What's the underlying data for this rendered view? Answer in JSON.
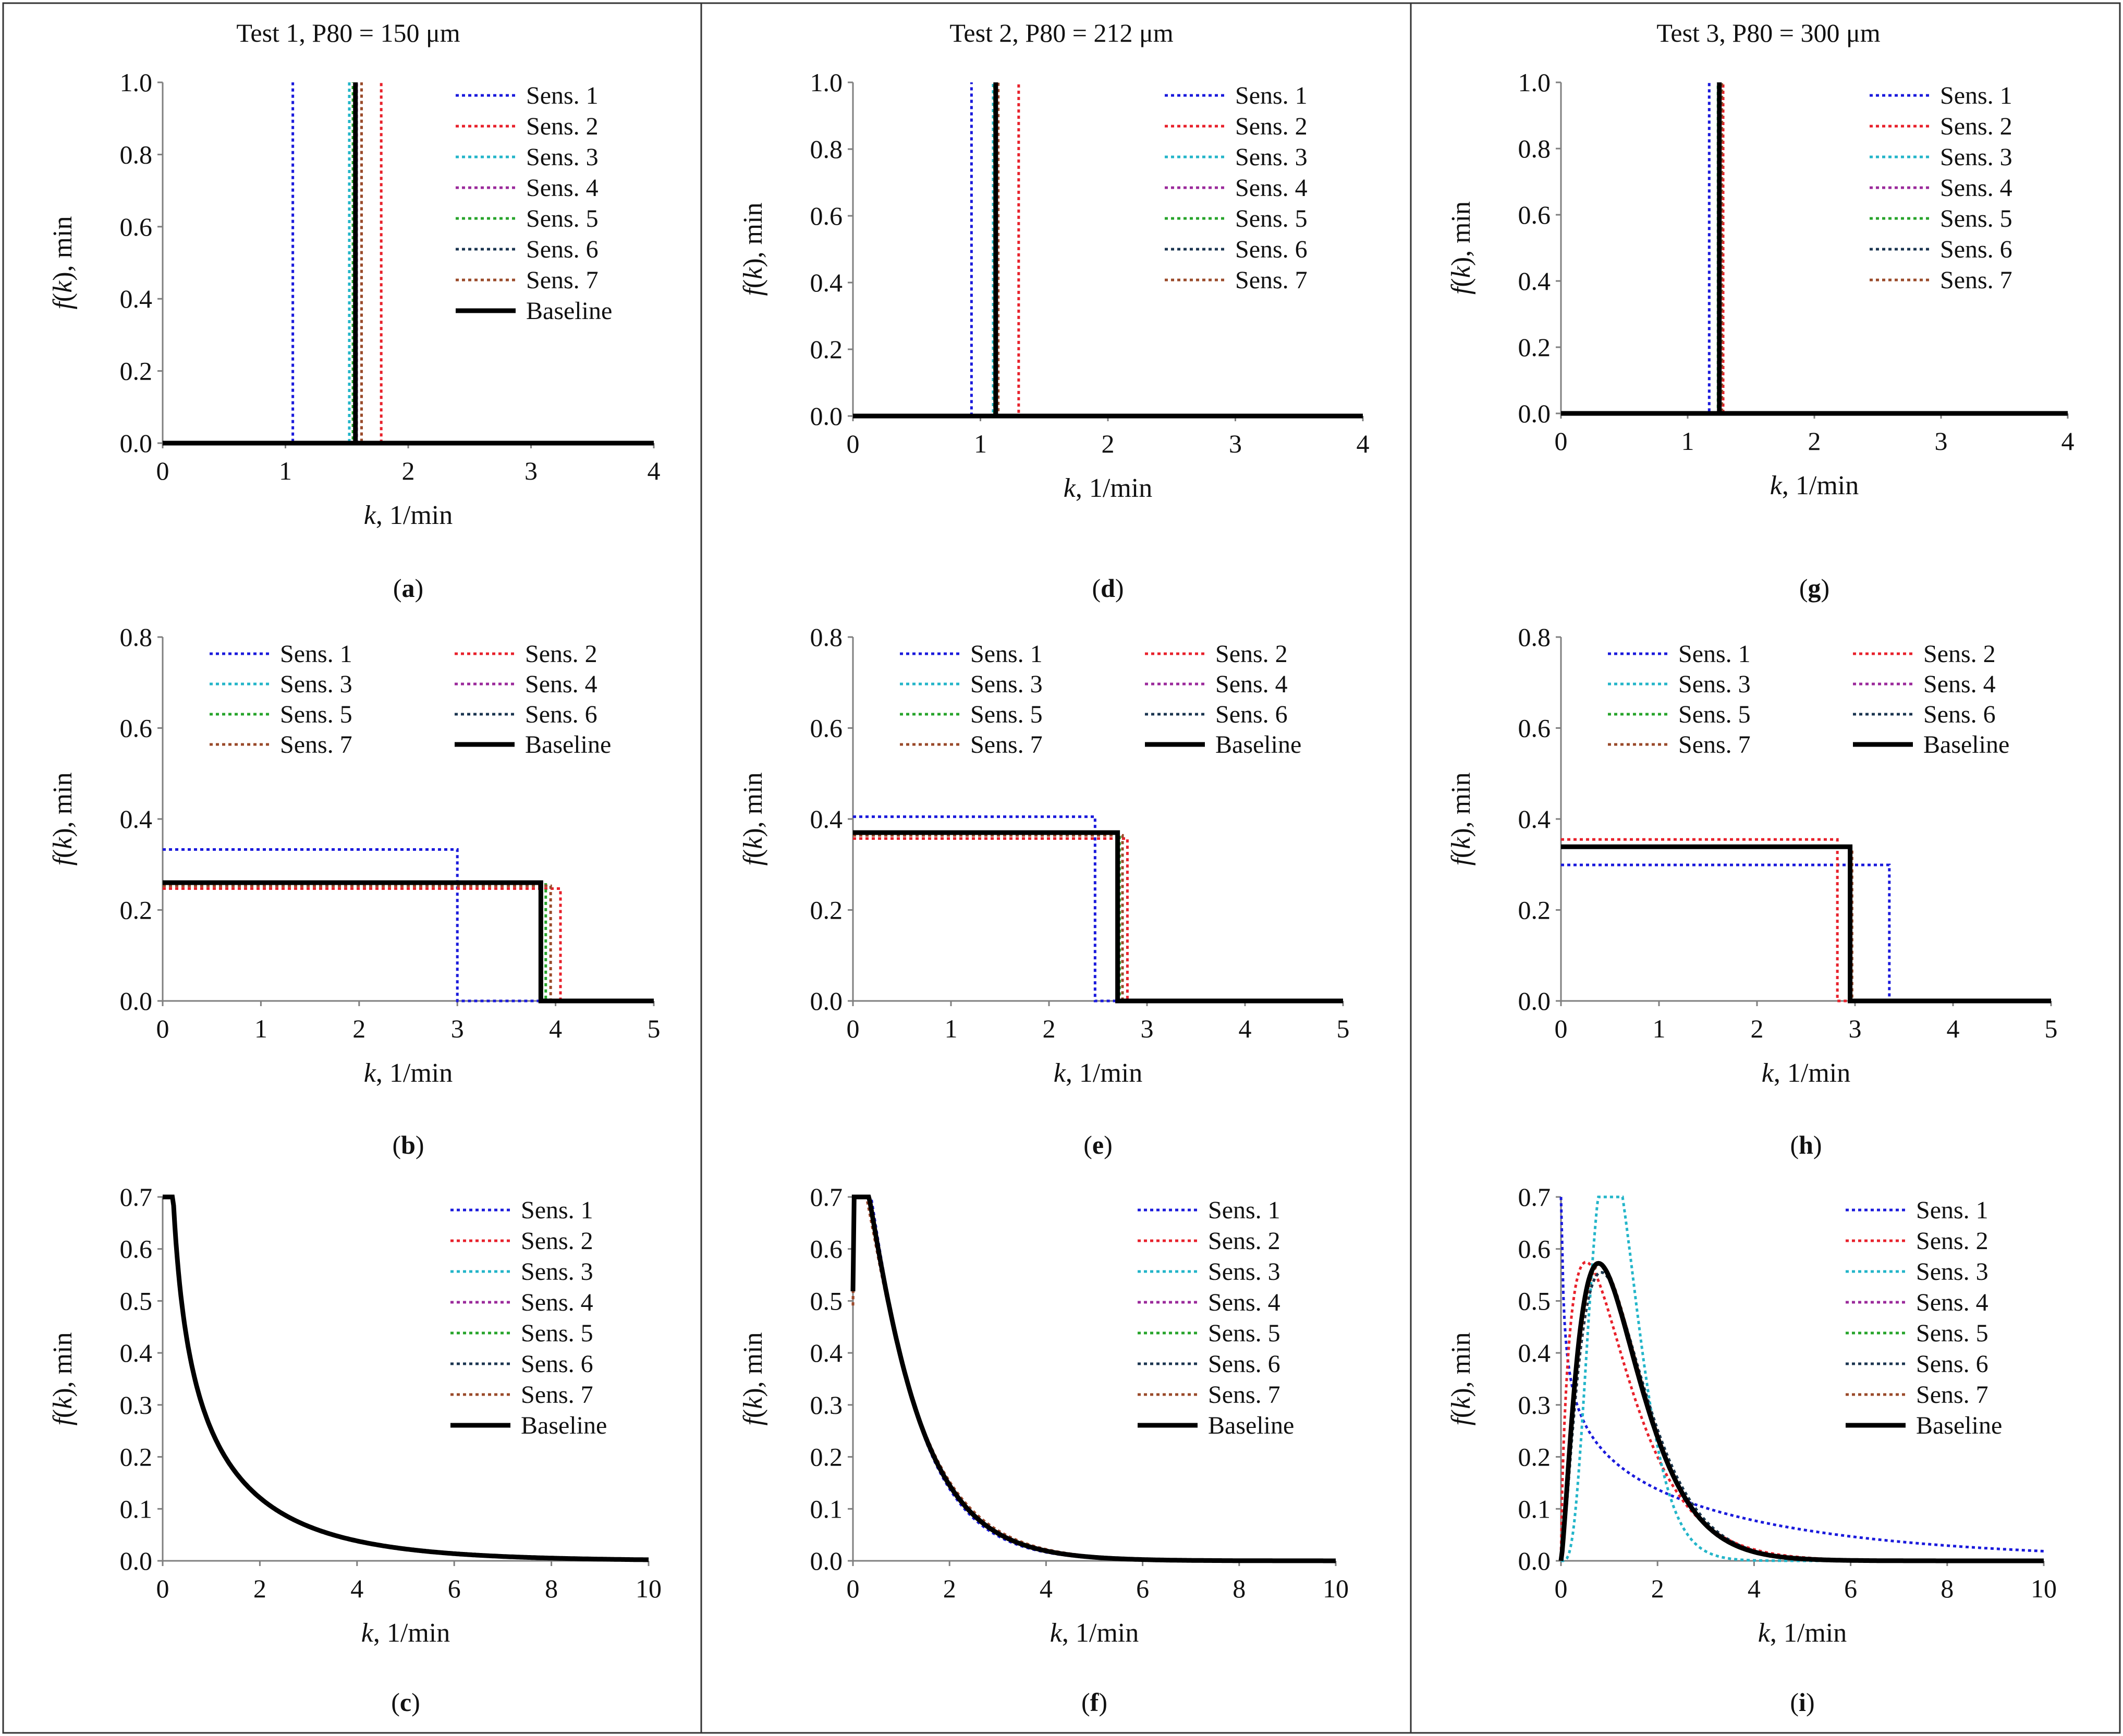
{
  "figure": {
    "columns": [
      "Test 1, P80 = 150 μm",
      "Test 2, P80 = 212 μm",
      "Test 3, P80 = 300 μm"
    ]
  },
  "series_styles": [
    {
      "name": "Sens. 1",
      "color": "#1a1adc",
      "dash": true
    },
    {
      "name": "Sens. 2",
      "color": "#e8212b",
      "dash": true
    },
    {
      "name": "Sens. 3",
      "color": "#23b5c9",
      "dash": true
    },
    {
      "name": "Sens. 4",
      "color": "#9b2a9b",
      "dash": true
    },
    {
      "name": "Sens. 5",
      "color": "#27a42b",
      "dash": true
    },
    {
      "name": "Sens. 6",
      "color": "#1b3550",
      "dash": true
    },
    {
      "name": "Sens. 7",
      "color": "#9a4a2a",
      "dash": true
    },
    {
      "name": "Baseline",
      "color": "#000000",
      "dash": false
    }
  ],
  "chart_data": [
    {
      "id": "a",
      "label": "(a)",
      "type": "line",
      "kind": "delta",
      "xlabel_var": "k",
      "xlabel_unit": ", 1/min",
      "ylabel_func": "f",
      "ylabel_arg": "k",
      "ylabel_unit": ", min",
      "xlim": [
        0,
        4
      ],
      "ylim": [
        0,
        1
      ],
      "xticks": [
        0,
        1,
        2,
        3,
        4
      ],
      "yticks": [
        "0.0",
        "0.2",
        "0.4",
        "0.6",
        "0.8",
        "1.0"
      ],
      "legend": "top-right-1col",
      "legend_entries": [
        "Sens. 1",
        "Sens. 2",
        "Sens. 3",
        "Sens. 4",
        "Sens. 5",
        "Sens. 6",
        "Sens. 7",
        "Baseline"
      ],
      "series": [
        {
          "name": "Sens. 1",
          "k": 1.06
        },
        {
          "name": "Sens. 2",
          "k": 1.78
        },
        {
          "name": "Sens. 3",
          "k": 1.52
        },
        {
          "name": "Sens. 4",
          "k": 1.58
        },
        {
          "name": "Sens. 5",
          "k": 1.55
        },
        {
          "name": "Sens. 6",
          "k": 1.57
        },
        {
          "name": "Sens. 7",
          "k": 1.62
        },
        {
          "name": "Baseline",
          "k": 1.57
        }
      ]
    },
    {
      "id": "b",
      "label": "(b)",
      "type": "line",
      "kind": "uniform",
      "xlabel_var": "k",
      "xlabel_unit": ", 1/min",
      "ylabel_func": "f",
      "ylabel_arg": "k",
      "ylabel_unit": ", min",
      "xlim": [
        0,
        5
      ],
      "ylim": [
        0,
        0.8
      ],
      "xticks": [
        0,
        1,
        2,
        3,
        4,
        5
      ],
      "yticks": [
        "0.0",
        "0.2",
        "0.4",
        "0.6",
        "0.8"
      ],
      "legend": "top-2col",
      "legend_entries": [
        "Sens. 1",
        "Sens. 2",
        "Sens. 3",
        "Sens. 4",
        "Sens. 5",
        "Sens. 6",
        "Sens. 7",
        "Baseline"
      ],
      "series": [
        {
          "name": "Sens. 1",
          "kmax": 3.0,
          "f": 0.333
        },
        {
          "name": "Sens. 2",
          "kmax": 4.05,
          "f": 0.247
        },
        {
          "name": "Sens. 3",
          "kmax": 3.85,
          "f": 0.26
        },
        {
          "name": "Sens. 4",
          "kmax": 3.85,
          "f": 0.26
        },
        {
          "name": "Sens. 5",
          "kmax": 3.9,
          "f": 0.256
        },
        {
          "name": "Sens. 6",
          "kmax": 3.85,
          "f": 0.26
        },
        {
          "name": "Sens. 7",
          "kmax": 3.95,
          "f": 0.253
        },
        {
          "name": "Baseline",
          "kmax": 3.85,
          "f": 0.26
        }
      ]
    },
    {
      "id": "c",
      "label": "(c)",
      "type": "line",
      "kind": "gamma",
      "xlabel_var": "k",
      "xlabel_unit": ", 1/min",
      "ylabel_func": "f",
      "ylabel_arg": "k",
      "ylabel_unit": ", min",
      "xlim": [
        0,
        10
      ],
      "ylim": [
        0,
        0.7
      ],
      "xticks": [
        0,
        2,
        4,
        6,
        8,
        10
      ],
      "yticks": [
        "0.0",
        "0.1",
        "0.2",
        "0.3",
        "0.4",
        "0.5",
        "0.6",
        "0.7"
      ],
      "legend": "top-right-1col",
      "legend_entries": [
        "Sens. 1",
        "Sens. 2",
        "Sens. 3",
        "Sens. 4",
        "Sens. 5",
        "Sens. 6",
        "Sens. 7",
        "Baseline"
      ],
      "series": [
        {
          "name": "Sens. 1",
          "a": 0.55,
          "b": 0.42
        },
        {
          "name": "Sens. 2",
          "a": 0.55,
          "b": 0.42
        },
        {
          "name": "Sens. 3",
          "a": 0.56,
          "b": 0.425
        },
        {
          "name": "Sens. 4",
          "a": 0.55,
          "b": 0.42
        },
        {
          "name": "Sens. 5",
          "a": 0.55,
          "b": 0.42
        },
        {
          "name": "Sens. 6",
          "a": 0.55,
          "b": 0.42
        },
        {
          "name": "Sens. 7",
          "a": 0.55,
          "b": 0.42
        },
        {
          "name": "Baseline",
          "a": 0.55,
          "b": 0.42
        }
      ]
    },
    {
      "id": "d",
      "label": "(d)",
      "type": "line",
      "kind": "delta",
      "xlabel_var": "k",
      "xlabel_unit": ", 1/min",
      "ylabel_func": "f",
      "ylabel_arg": "k",
      "ylabel_unit": ", min",
      "xlim": [
        0,
        4
      ],
      "ylim": [
        0,
        1
      ],
      "xticks": [
        0,
        1,
        2,
        3,
        4
      ],
      "yticks": [
        "0.0",
        "0.2",
        "0.4",
        "0.6",
        "0.8",
        "1.0"
      ],
      "legend": "top-right-1col",
      "legend_entries": [
        "Sens. 1",
        "Sens. 2",
        "Sens. 3",
        "Sens. 4",
        "Sens. 5",
        "Sens. 6",
        "Sens. 7"
      ],
      "series": [
        {
          "name": "Sens. 1",
          "k": 0.93
        },
        {
          "name": "Sens. 2",
          "k": 1.3
        },
        {
          "name": "Sens. 3",
          "k": 1.1
        },
        {
          "name": "Sens. 4",
          "k": 1.12
        },
        {
          "name": "Sens. 5",
          "k": 1.11
        },
        {
          "name": "Sens. 6",
          "k": 1.12
        },
        {
          "name": "Sens. 7",
          "k": 1.14
        },
        {
          "name": "Baseline",
          "k": 1.12
        }
      ]
    },
    {
      "id": "e",
      "label": "(e)",
      "type": "line",
      "kind": "uniform",
      "xlabel_var": "k",
      "xlabel_unit": ", 1/min",
      "ylabel_func": "f",
      "ylabel_arg": "k",
      "ylabel_unit": ", min",
      "xlim": [
        0,
        5
      ],
      "ylim": [
        0,
        0.8
      ],
      "xticks": [
        0,
        1,
        2,
        3,
        4,
        5
      ],
      "yticks": [
        "0.0",
        "0.2",
        "0.4",
        "0.6",
        "0.8"
      ],
      "legend": "top-2col",
      "legend_entries": [
        "Sens. 1",
        "Sens. 2",
        "Sens. 3",
        "Sens. 4",
        "Sens. 5",
        "Sens. 6",
        "Sens. 7",
        "Baseline"
      ],
      "series": [
        {
          "name": "Sens. 1",
          "kmax": 2.47,
          "f": 0.405
        },
        {
          "name": "Sens. 2",
          "kmax": 2.8,
          "f": 0.357
        },
        {
          "name": "Sens. 3",
          "kmax": 2.7,
          "f": 0.37
        },
        {
          "name": "Sens. 4",
          "kmax": 2.7,
          "f": 0.37
        },
        {
          "name": "Sens. 5",
          "kmax": 2.72,
          "f": 0.368
        },
        {
          "name": "Sens. 6",
          "kmax": 2.7,
          "f": 0.37
        },
        {
          "name": "Sens. 7",
          "kmax": 2.75,
          "f": 0.364
        },
        {
          "name": "Baseline",
          "kmax": 2.7,
          "f": 0.37
        }
      ]
    },
    {
      "id": "f",
      "label": "(f)",
      "type": "line",
      "kind": "gamma",
      "xlabel_var": "k",
      "xlabel_unit": ", 1/min",
      "ylabel_func": "f",
      "ylabel_arg": "k",
      "ylabel_unit": ", min",
      "xlim": [
        0,
        10
      ],
      "ylim": [
        0,
        0.7
      ],
      "xticks": [
        0,
        2,
        4,
        6,
        8,
        10
      ],
      "yticks": [
        "0.0",
        "0.1",
        "0.2",
        "0.3",
        "0.4",
        "0.5",
        "0.6",
        "0.7"
      ],
      "legend": "top-right-1col",
      "legend_entries": [
        "Sens. 1",
        "Sens. 2",
        "Sens. 3",
        "Sens. 4",
        "Sens. 5",
        "Sens. 6",
        "Sens. 7",
        "Baseline"
      ],
      "series": [
        {
          "name": "Sens. 1",
          "a": 1.1,
          "b": 1.1
        },
        {
          "name": "Sens. 2",
          "a": 1.1,
          "b": 1.0
        },
        {
          "name": "Sens. 3",
          "a": 1.1,
          "b": 1.05
        },
        {
          "name": "Sens. 4",
          "a": 1.1,
          "b": 1.05
        },
        {
          "name": "Sens. 5",
          "a": 1.1,
          "b": 1.05
        },
        {
          "name": "Sens. 6",
          "a": 1.1,
          "b": 1.05
        },
        {
          "name": "Sens. 7",
          "a": 1.1,
          "b": 1.0
        },
        {
          "name": "Baseline",
          "a": 1.1,
          "b": 1.05
        }
      ]
    },
    {
      "id": "g",
      "label": "(g)",
      "type": "line",
      "kind": "delta",
      "xlabel_var": "k",
      "xlabel_unit": ", 1/min",
      "ylabel_func": "f",
      "ylabel_arg": "k",
      "ylabel_unit": ", min",
      "xlim": [
        0,
        4
      ],
      "ylim": [
        0,
        1
      ],
      "xticks": [
        0,
        1,
        2,
        3,
        4
      ],
      "yticks": [
        "0.0",
        "0.2",
        "0.4",
        "0.6",
        "0.8",
        "1.0"
      ],
      "legend": "top-right-1col",
      "legend_entries": [
        "Sens. 1",
        "Sens. 2",
        "Sens. 3",
        "Sens. 4",
        "Sens. 5",
        "Sens. 6",
        "Sens. 7"
      ],
      "series": [
        {
          "name": "Sens. 1",
          "k": 1.17
        },
        {
          "name": "Sens. 2",
          "k": 1.28
        },
        {
          "name": "Sens. 3",
          "k": 1.24
        },
        {
          "name": "Sens. 4",
          "k": 1.25
        },
        {
          "name": "Sens. 5",
          "k": 1.24
        },
        {
          "name": "Sens. 6",
          "k": 1.25
        },
        {
          "name": "Sens. 7",
          "k": 1.27
        },
        {
          "name": "Baseline",
          "k": 1.25
        }
      ]
    },
    {
      "id": "h",
      "label": "(h)",
      "type": "line",
      "kind": "uniform",
      "xlabel_var": "k",
      "xlabel_unit": ", 1/min",
      "ylabel_func": "f",
      "ylabel_arg": "k",
      "ylabel_unit": ", min",
      "xlim": [
        0,
        5
      ],
      "ylim": [
        0,
        0.8
      ],
      "xticks": [
        0,
        1,
        2,
        3,
        4,
        5
      ],
      "yticks": [
        "0.0",
        "0.2",
        "0.4",
        "0.6",
        "0.8"
      ],
      "legend": "top-2col",
      "legend_entries": [
        "Sens. 1",
        "Sens. 2",
        "Sens. 3",
        "Sens. 4",
        "Sens. 5",
        "Sens. 6",
        "Sens. 7",
        "Baseline"
      ],
      "series": [
        {
          "name": "Sens. 1",
          "kmax": 3.35,
          "f": 0.299
        },
        {
          "name": "Sens. 2",
          "kmax": 2.82,
          "f": 0.355
        },
        {
          "name": "Sens. 3",
          "kmax": 2.95,
          "f": 0.339
        },
        {
          "name": "Sens. 4",
          "kmax": 2.95,
          "f": 0.339
        },
        {
          "name": "Sens. 5",
          "kmax": 2.96,
          "f": 0.338
        },
        {
          "name": "Sens. 6",
          "kmax": 2.95,
          "f": 0.339
        },
        {
          "name": "Sens. 7",
          "kmax": 2.97,
          "f": 0.337
        },
        {
          "name": "Baseline",
          "kmax": 2.95,
          "f": 0.339
        }
      ]
    },
    {
      "id": "i",
      "label": "(i)",
      "type": "line",
      "kind": "gamma",
      "xlabel_var": "k",
      "xlabel_unit": ", 1/min",
      "ylabel_func": "f",
      "ylabel_arg": "k",
      "ylabel_unit": ", min",
      "xlim": [
        0,
        10
      ],
      "ylim": [
        0,
        0.7
      ],
      "xticks": [
        0,
        2,
        4,
        6,
        8,
        10
      ],
      "yticks": [
        "0.0",
        "0.1",
        "0.2",
        "0.3",
        "0.4",
        "0.5",
        "0.6",
        "0.7"
      ],
      "legend": "top-right-1col",
      "legend_entries": [
        "Sens. 1",
        "Sens. 2",
        "Sens. 3",
        "Sens. 4",
        "Sens. 5",
        "Sens. 6",
        "Sens. 7",
        "Baseline"
      ],
      "series": [
        {
          "name": "Sens. 1",
          "a": 0.75,
          "b": 0.2
        },
        {
          "name": "Sens. 2",
          "a": 1.7,
          "b": 1.35
        },
        {
          "name": "Sens. 3",
          "a": 5.2,
          "b": 4.2
        },
        {
          "name": "Sens. 4",
          "a": 2.5,
          "b": 1.8
        },
        {
          "name": "Sens. 5",
          "a": 2.5,
          "b": 1.8
        },
        {
          "name": "Sens. 6",
          "a": 2.5,
          "b": 1.8
        },
        {
          "name": "Sens. 7",
          "a": 2.5,
          "b": 1.85
        },
        {
          "name": "Baseline",
          "a": 2.4,
          "b": 1.8
        }
      ]
    }
  ]
}
